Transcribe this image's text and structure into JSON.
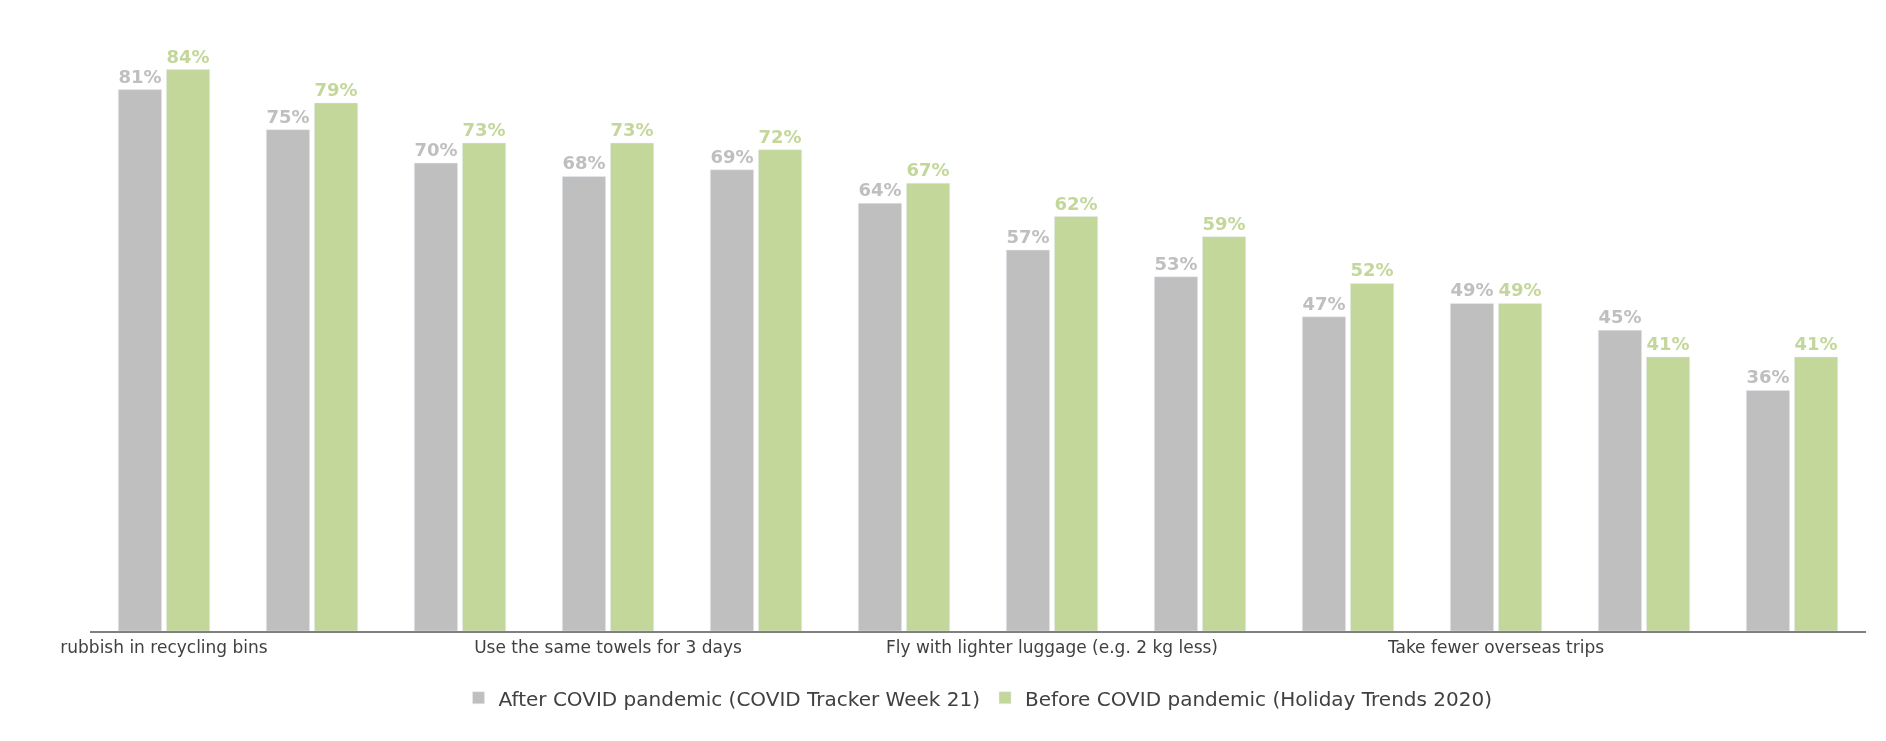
{
  "chart_data": {
    "type": "bar",
    "categories": [
      "rubbish in recycling bins",
      null,
      null,
      "Use the same towels for 3 days",
      null,
      null,
      "Fly with lighter luggage (e.g. 2 kg less)",
      null,
      null,
      "Take fewer overseas trips",
      null,
      null
    ],
    "series": [
      {
        "name": "After COVID pandemic (COVID Tracker Week 21)",
        "color": "#bfbfbf",
        "values": [
          81,
          75,
          70,
          68,
          69,
          64,
          57,
          53,
          47,
          49,
          45,
          36
        ],
        "value_labels": [
          "81%",
          "75%",
          "70%",
          "68%",
          "69%",
          "64%",
          "57%",
          "53%",
          "47%",
          "49%",
          "45%",
          "36%"
        ]
      },
      {
        "name": "Before COVID pandemic (Holiday Trends 2020)",
        "color": "#c4d79b",
        "values": [
          84,
          79,
          73,
          73,
          72,
          67,
          62,
          59,
          52,
          49,
          41,
          41
        ],
        "value_labels": [
          "84%",
          "79%",
          "73%",
          "73%",
          "72%",
          "67%",
          "62%",
          "59%",
          "52%",
          "49%",
          "41%",
          "41%"
        ]
      }
    ],
    "legend": "bottom"
  }
}
